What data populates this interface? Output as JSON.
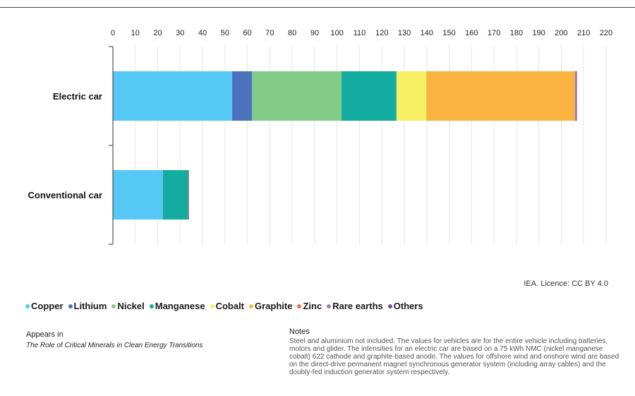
{
  "chart_data": {
    "type": "bar",
    "orientation": "horizontal",
    "stacked": true,
    "categories": [
      "Electric car",
      "Conventional car"
    ],
    "series": [
      {
        "name": "Copper",
        "color": "#56c8f5",
        "values": [
          53.2,
          22.3
        ]
      },
      {
        "name": "Lithium",
        "color": "#4a72bd",
        "values": [
          8.9,
          0
        ]
      },
      {
        "name": "Nickel",
        "color": "#85cb88",
        "values": [
          39.9,
          0
        ]
      },
      {
        "name": "Manganese",
        "color": "#14aca0",
        "values": [
          24.5,
          11.2
        ]
      },
      {
        "name": "Cobalt",
        "color": "#f7f065",
        "values": [
          13.3,
          0
        ]
      },
      {
        "name": "Graphite",
        "color": "#fbb340",
        "values": [
          66.3,
          0
        ]
      },
      {
        "name": "Zinc",
        "color": "#f26b4f",
        "values": [
          0.1,
          0.1
        ]
      },
      {
        "name": "Rare earths",
        "color": "#9b7fb6",
        "values": [
          0.5,
          0
        ]
      },
      {
        "name": "Others",
        "color": "#7b4e8f",
        "values": [
          0.3,
          0.3
        ]
      }
    ],
    "xlim": [
      0,
      220
    ],
    "xticks": [
      0,
      10,
      20,
      30,
      40,
      50,
      60,
      70,
      80,
      90,
      100,
      110,
      120,
      130,
      140,
      150,
      160,
      170,
      180,
      190,
      200,
      210,
      220
    ],
    "grid": true,
    "axis_position": "top",
    "legend_position": "bottom-left"
  },
  "licence": "IEA. Licence: CC BY 4.0",
  "appears": {
    "label": "Appears in",
    "publication": "The Role of Critical Minerals in Clean Energy Transitions"
  },
  "notes": {
    "label": "Notes",
    "text": "Steel and aluminium not included. The values for vehicles are for the entire vehicle including batteries, motors and glider. The intensities for an electric car are based on a 75 kWh NMC (nickel manganese cobalt) 622 cathode and graphite-based anode. The values for offshore wind and onshore wind are based on the direct-drive permanent magnet synchronous generator system (including array cables) and the doubly-fed induction generator system respectively."
  }
}
